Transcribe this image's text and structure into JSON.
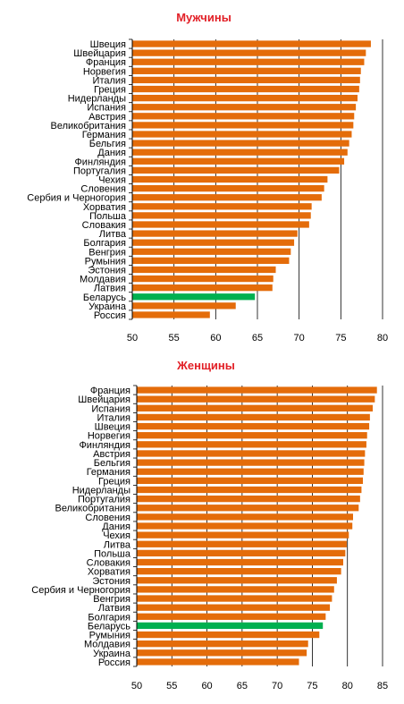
{
  "colors": {
    "bar": "#e46c0a",
    "highlight": "#00b050",
    "grid": "#000000",
    "title": "#e21f26"
  },
  "chart_data": [
    {
      "type": "bar",
      "orientation": "horizontal",
      "title": "Мужчины",
      "xlim": [
        50,
        80
      ],
      "xticks": [
        50,
        55,
        60,
        65,
        70,
        75,
        80
      ],
      "grid": "vertical",
      "highlight": "Беларусь",
      "categories": [
        "Швеция",
        "Швейцария",
        "Франция",
        "Норвегия",
        "Италия",
        "Греция",
        "Нидерланды",
        "Испания",
        "Австрия",
        "Великобритания",
        "Германия",
        "Бельгия",
        "Дания",
        "Финляндия",
        "Португалия",
        "Чехия",
        "Словения",
        "Сербия и Черногория",
        "Хорватия",
        "Польша",
        "Словакия",
        "Литва",
        "Болгария",
        "Венгрия",
        "Румыния",
        "Эстония",
        "Молдавия",
        "Латвия",
        "Беларусь",
        "Украина",
        "Россия"
      ],
      "values": [
        78.6,
        78.0,
        77.8,
        77.4,
        77.3,
        77.2,
        77.0,
        76.8,
        76.6,
        76.5,
        76.3,
        76.0,
        75.8,
        75.4,
        74.8,
        73.4,
        73.0,
        72.7,
        71.5,
        71.4,
        71.2,
        69.8,
        69.4,
        69.0,
        68.8,
        67.2,
        66.9,
        66.8,
        64.7,
        62.4,
        59.3
      ]
    },
    {
      "type": "bar",
      "orientation": "horizontal",
      "title": "Женщины",
      "xlim": [
        50,
        85
      ],
      "xticks": [
        50,
        55,
        60,
        65,
        70,
        75,
        80,
        85
      ],
      "grid": "vertical",
      "highlight": "Беларусь",
      "categories": [
        "Франция",
        "Швейцария",
        "Испания",
        "Италия",
        "Швеция",
        "Норвегия",
        "Финляндия",
        "Австрия",
        "Бельгия",
        "Германия",
        "Греция",
        "Нидерланды",
        "Португалия",
        "Великобритания",
        "Словения",
        "Дания",
        "Чехия",
        "Литва",
        "Польша",
        "Словакия",
        "Хорватия",
        "Эстония",
        "Сербия и Черногория",
        "Венгрия",
        "Латвия",
        "Болгария",
        "Беларусь",
        "Румыния",
        "Молдавия",
        "Украина",
        "Россия"
      ],
      "values": [
        84.2,
        83.9,
        83.6,
        83.2,
        83.1,
        82.8,
        82.7,
        82.5,
        82.4,
        82.3,
        82.2,
        82.0,
        81.8,
        81.6,
        80.8,
        80.7,
        80.2,
        79.9,
        79.7,
        79.4,
        79.1,
        78.5,
        78.1,
        77.8,
        77.5,
        76.9,
        76.5,
        76.0,
        74.4,
        74.2,
        73.1
      ]
    }
  ]
}
